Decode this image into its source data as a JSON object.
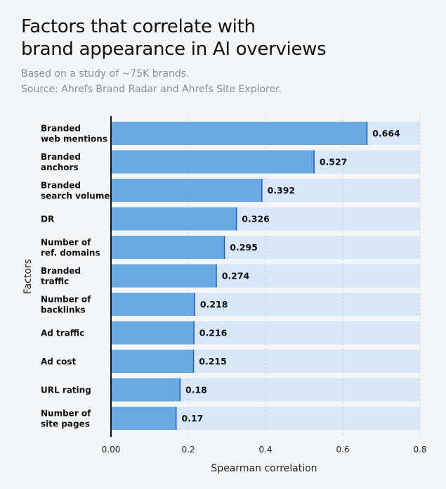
{
  "title_line1": "Factors that correlate with",
  "title_line2": "brand appearance in AI overviews",
  "subtitle_line1": "Based on a study of ~75K brands.",
  "subtitle_line2": "Source: Ahrefs Brand Radar and Ahrefs Site Explorer.",
  "chart_data": {
    "type": "bar",
    "orientation": "horizontal",
    "categories": [
      [
        "Branded",
        "web mentions"
      ],
      [
        "Branded",
        "anchors"
      ],
      [
        "Branded",
        "search volume"
      ],
      [
        "DR"
      ],
      [
        "Number of",
        "ref. domains"
      ],
      [
        "Branded",
        "traffic"
      ],
      [
        "Number of",
        "backlinks"
      ],
      [
        "Ad traffic"
      ],
      [
        "Ad cost"
      ],
      [
        "URL rating"
      ],
      [
        "Number of",
        "site pages"
      ]
    ],
    "values": [
      0.664,
      0.527,
      0.392,
      0.326,
      0.295,
      0.274,
      0.218,
      0.216,
      0.215,
      0.18,
      0.17
    ],
    "value_labels": [
      "0.664",
      "0.527",
      "0.392",
      "0.326",
      "0.295",
      "0.274",
      "0.218",
      "0.216",
      "0.215",
      "0.18",
      "0.17"
    ],
    "xlabel": "Spearman correlation",
    "ylabel": "Factors",
    "xlim": [
      0,
      0.8
    ],
    "xticks": [
      "0.00",
      "0.2",
      "0.4",
      "0.6",
      "0.8"
    ],
    "grid": "vertical dotted",
    "colors": {
      "bar": "#6aaae2",
      "bar_end": "#1f5fd1",
      "track": "#d8e8f9",
      "axis": "#111111"
    }
  }
}
